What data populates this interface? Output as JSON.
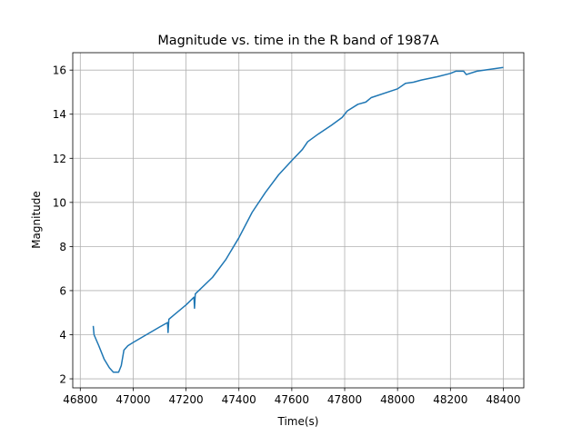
{
  "chart_data": {
    "type": "line",
    "title": "Magnitude vs. time in the R band of 1987A",
    "xlabel": "Time(s)",
    "ylabel": "Magnitude",
    "x": [
      46849,
      46852,
      46870,
      46890,
      46910,
      46925,
      46945,
      46955,
      46965,
      46980,
      47000,
      47050,
      47100,
      47130,
      47132,
      47135,
      47150,
      47200,
      47230,
      47232,
      47235,
      47300,
      47350,
      47400,
      47450,
      47500,
      47550,
      47600,
      47640,
      47660,
      47700,
      47750,
      47790,
      47810,
      47850,
      47880,
      47900,
      48000,
      48030,
      48060,
      48090,
      48150,
      48200,
      48220,
      48250,
      48260,
      48300,
      48400
    ],
    "series": [
      {
        "name": "R",
        "color": "#1f77b4",
        "values": [
          4.4,
          4.0,
          3.5,
          2.9,
          2.5,
          2.3,
          2.3,
          2.6,
          3.3,
          3.5,
          3.65,
          4.0,
          4.35,
          4.55,
          4.1,
          4.7,
          4.85,
          5.35,
          5.7,
          5.2,
          5.85,
          6.6,
          7.4,
          8.4,
          9.55,
          10.45,
          11.25,
          11.9,
          12.4,
          12.75,
          13.1,
          13.5,
          13.85,
          14.15,
          14.45,
          14.55,
          14.75,
          15.15,
          15.4,
          15.45,
          15.55,
          15.7,
          15.85,
          15.95,
          15.95,
          15.8,
          15.95,
          16.12
        ]
      }
    ],
    "xlim": [
      46771.5,
      48477.5
    ],
    "ylim": [
      1.59,
      16.79
    ],
    "xticks": [
      46800,
      47000,
      47200,
      47400,
      47600,
      47800,
      48000,
      48200,
      48400
    ],
    "yticks": [
      2,
      4,
      6,
      8,
      10,
      12,
      14,
      16
    ],
    "grid": true
  }
}
